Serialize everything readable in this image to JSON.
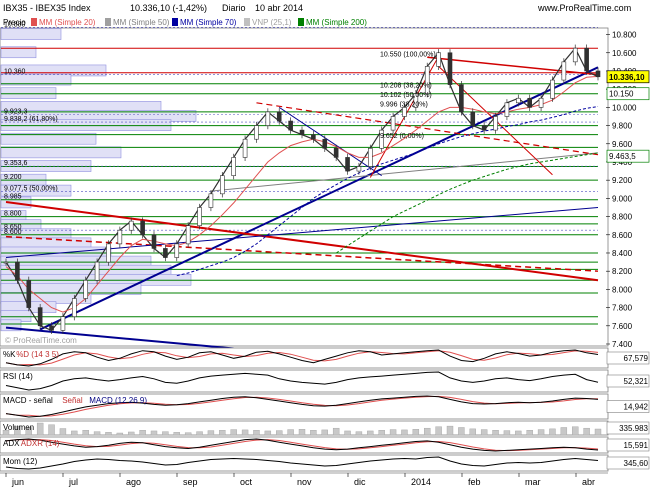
{
  "header": {
    "instrument": "IBX35 - IBEX35 Index",
    "quote": "10.336,10 (-1,42%)",
    "period": "Diario",
    "date": "10 abr 2014",
    "site": "www.ProRealTime.com"
  },
  "legend": {
    "price": "Precio",
    "ma20": "MM (Simple 20)",
    "ma50": "MM (Simple 50)",
    "ma70": "MM (Simple 70)",
    "vnp": "VNP (25,1)",
    "ma200": "MM (Simple 200)"
  },
  "watermark": "© ProRealTime.com",
  "colors": {
    "ma20": "#e05050",
    "ma50": "#a0a0a0",
    "ma70": "#0000a0",
    "ma200": "#008000",
    "trend_red": "#d00000",
    "trend_blue": "#000090",
    "volume_profile": "#9090e0",
    "last_price_tag": "#ffff00"
  },
  "chart_data": [
    {
      "type": "line",
      "panel": "price",
      "ylim": [
        7400,
        10850
      ],
      "yticks": [
        "10.800",
        "10.600",
        "10.400",
        "10.200",
        "10.000",
        "9.800",
        "9.600",
        "9.400",
        "9.200",
        "9.000",
        "8.800",
        "8.600",
        "8.400",
        "8.200",
        "8.000",
        "7.800",
        "7.600",
        "7.400"
      ],
      "xlabels": [
        "jun",
        "jul",
        "ago",
        "sep",
        "oct",
        "nov",
        "dic",
        "2014",
        "feb",
        "mar",
        "abr"
      ],
      "series": [
        {
          "name": "Precio",
          "values": [
            8300,
            8100,
            7800,
            7600,
            7550,
            7700,
            7900,
            8100,
            8300,
            8500,
            8650,
            8750,
            8600,
            8450,
            8350,
            8500,
            8700,
            8900,
            9050,
            9250,
            9450,
            9650,
            9800,
            9950,
            9850,
            9750,
            9700,
            9650,
            9550,
            9450,
            9300,
            9350,
            9550,
            9750,
            9900,
            10000,
            10150,
            10450,
            10600,
            10250,
            9950,
            9800,
            9750,
            9900,
            10050,
            10100,
            10000,
            10100,
            10300,
            10500,
            10650,
            10400,
            10336
          ]
        },
        {
          "name": "MM (Simple 20)",
          "values": [
            8250,
            8150,
            8000,
            7900,
            7800,
            7750,
            7800,
            7900,
            8050,
            8200,
            8350,
            8480,
            8550,
            8530,
            8500,
            8480,
            8520,
            8600,
            8700,
            8820,
            8950,
            9100,
            9250,
            9400,
            9500,
            9580,
            9620,
            9650,
            9620,
            9570,
            9500,
            9450,
            9450,
            9500,
            9580,
            9660,
            9750,
            9850,
            9950,
            10000,
            10000,
            9980,
            9950,
            9930,
            9950,
            9980,
            10000,
            10030,
            10080,
            10170,
            10270,
            10330,
            10340
          ]
        },
        {
          "name": "MM (Simple 70)",
          "values": [
            null,
            null,
            null,
            null,
            null,
            null,
            null,
            null,
            null,
            null,
            null,
            null,
            null,
            null,
            null,
            8150,
            8180,
            8220,
            8260,
            8300,
            8350,
            8420,
            8500,
            8600,
            8700,
            8800,
            8900,
            9000,
            9080,
            9150,
            9220,
            9280,
            9330,
            9380,
            9420,
            9460,
            9500,
            9550,
            9600,
            9640,
            9680,
            9710,
            9740,
            9760,
            9790,
            9810,
            9840,
            9860,
            9890,
            9920,
            9960,
            9990,
            10010
          ]
        },
        {
          "name": "MM (Simple 200)",
          "values": [
            null,
            null,
            null,
            null,
            null,
            null,
            null,
            null,
            null,
            null,
            null,
            null,
            null,
            null,
            null,
            null,
            null,
            null,
            null,
            null,
            null,
            null,
            null,
            null,
            null,
            null,
            null,
            null,
            null,
            8400,
            8480,
            8560,
            8640,
            8720,
            8800,
            8860,
            8920,
            8980,
            9040,
            9100,
            9150,
            9200,
            9240,
            9280,
            9320,
            9350,
            9380,
            9400,
            9420,
            9440,
            9460,
            9480,
            9500
          ]
        }
      ],
      "price_labels": [
        {
          "value": 10880,
          "text": "10.880"
        },
        {
          "value": 10360,
          "text": "10.360"
        },
        {
          "value": 9923.3,
          "text": "9.923,3"
        },
        {
          "value": 9838.2,
          "text": "9.838,2 (61,80%)"
        },
        {
          "value": 9353.6,
          "text": "9.353,6"
        },
        {
          "value": 9200,
          "text": "9.200"
        },
        {
          "value": 9077.5,
          "text": "9.077,5 (50,00%)"
        },
        {
          "value": 8985,
          "text": "8.985"
        },
        {
          "value": 8800,
          "text": "8.800"
        },
        {
          "value": 8650,
          "text": "8.650"
        },
        {
          "value": 8600,
          "text": "8.600"
        }
      ],
      "fib_labels": [
        {
          "value": 10550,
          "text": "10.550 (100,00%)"
        },
        {
          "value": 10208,
          "text": "10.208 (38,20%)"
        },
        {
          "value": 10102,
          "text": "10.102 (50,00%)"
        },
        {
          "value": 9996,
          "text": "9.996 (38,20%)"
        },
        {
          "value": 9652,
          "text": "9.652 (0,00%)"
        }
      ],
      "right_tags": [
        {
          "value": 10336.1,
          "text": "10.336,10"
        },
        {
          "value": 10150,
          "text": "10.150"
        },
        {
          "value": 9463.5,
          "text": "9.463,5"
        }
      ]
    },
    {
      "type": "line",
      "panel": "%K %D (14 3 5)",
      "label": "%K",
      "label2": "%D (14 3 5)",
      "last": "67,579",
      "values": [
        30,
        20,
        15,
        25,
        45,
        70,
        80,
        75,
        55,
        40,
        50,
        70,
        85,
        80,
        60,
        45,
        55,
        75,
        80,
        65,
        50,
        60,
        78,
        82,
        70,
        55,
        40,
        30,
        45,
        60,
        75,
        85,
        80,
        65,
        70,
        75,
        80,
        85,
        88,
        60,
        40,
        35,
        50,
        70,
        80,
        72,
        60,
        65,
        78,
        85,
        88,
        75,
        67.6
      ]
    },
    {
      "type": "line",
      "panel": "RSI (14)",
      "label": "RSI (14)",
      "last": "52,321",
      "values": [
        45,
        40,
        35,
        38,
        45,
        55,
        60,
        62,
        58,
        55,
        58,
        62,
        65,
        60,
        52,
        50,
        55,
        62,
        66,
        68,
        70,
        72,
        70,
        68,
        60,
        55,
        52,
        50,
        48,
        52,
        58,
        62,
        64,
        66,
        68,
        70,
        72,
        74,
        75,
        62,
        55,
        52,
        55,
        60,
        62,
        58,
        56,
        60,
        65,
        68,
        70,
        58,
        52.3
      ]
    },
    {
      "type": "line",
      "panel": "MACD",
      "label": "MACD - señal",
      "label2": "Señal",
      "label3": "MACD (12 26 9)",
      "last": "14,942",
      "values": [
        -60,
        -80,
        -100,
        -90,
        -70,
        -40,
        -10,
        20,
        40,
        60,
        70,
        75,
        65,
        50,
        40,
        45,
        60,
        80,
        100,
        120,
        135,
        140,
        130,
        110,
        90,
        70,
        50,
        35,
        30,
        40,
        60,
        80,
        100,
        115,
        125,
        135,
        145,
        150,
        140,
        110,
        80,
        60,
        55,
        60,
        70,
        75,
        70,
        75,
        90,
        110,
        125,
        120,
        110
      ]
    },
    {
      "type": "bar",
      "panel": "Volumen",
      "label": "Volumen",
      "last": "335.983",
      "values": [
        300,
        420,
        380,
        510,
        460,
        350,
        280,
        300,
        260,
        240,
        220,
        250,
        300,
        280,
        260,
        240,
        230,
        260,
        290,
        300,
        320,
        310,
        300,
        280,
        290,
        320,
        330,
        300,
        310,
        360,
        280,
        260,
        280,
        300,
        320,
        310,
        330,
        360,
        400,
        420,
        380,
        340,
        320,
        300,
        290,
        280,
        300,
        320,
        340,
        380,
        400,
        360,
        336
      ]
    },
    {
      "type": "line",
      "panel": "ADX ADXR (14)",
      "label": "ADX",
      "label2": "ADXR (14)",
      "last": "15,591",
      "values": [
        30,
        32,
        33,
        31,
        28,
        25,
        22,
        20,
        21,
        23,
        26,
        28,
        27,
        24,
        21,
        19,
        18,
        20,
        23,
        26,
        29,
        32,
        33,
        31,
        28,
        25,
        22,
        19,
        17,
        16,
        17,
        19,
        21,
        23,
        25,
        27,
        29,
        30,
        28,
        24,
        20,
        17,
        15,
        14,
        15,
        16,
        17,
        18,
        19,
        20,
        19,
        17,
        15.6
      ]
    },
    {
      "type": "line",
      "panel": "Mom (12)",
      "label": "Mom (12)",
      "last": "345,60",
      "values": [
        -300,
        -450,
        -500,
        -400,
        -200,
        0,
        250,
        400,
        500,
        450,
        350,
        300,
        200,
        50,
        -100,
        -50,
        150,
        300,
        450,
        500,
        550,
        500,
        450,
        350,
        250,
        100,
        0,
        -100,
        -200,
        -150,
        0,
        150,
        300,
        400,
        500,
        550,
        500,
        650,
        700,
        300,
        0,
        -150,
        -200,
        -50,
        100,
        150,
        100,
        150,
        300,
        450,
        550,
        450,
        345.6
      ]
    }
  ]
}
